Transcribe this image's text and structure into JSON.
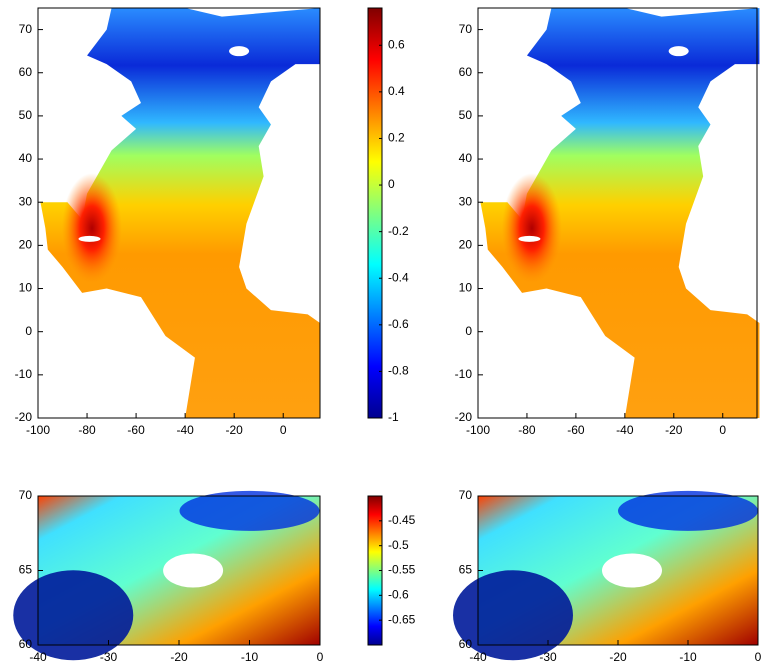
{
  "chart_data": [
    {
      "type": "heatmap",
      "xlim": [
        -100,
        15
      ],
      "ylim": [
        -20,
        75
      ],
      "xticks": [
        -100,
        -80,
        -60,
        -40,
        -20,
        0
      ],
      "yticks": [
        -20,
        -10,
        0,
        10,
        20,
        30,
        40,
        50,
        60,
        70
      ],
      "colorbar": {
        "colormap": "jet",
        "clim": [
          -1,
          0.76
        ],
        "ticks": [
          0.6,
          0.4,
          0.2,
          0,
          -0.2,
          -0.4,
          -0.6,
          -0.8,
          -1
        ]
      }
    },
    {
      "type": "heatmap",
      "xlim": [
        -100,
        14
      ],
      "ylim": [
        -20,
        75
      ],
      "xticks": [
        -100,
        -80,
        -60,
        -40,
        -20,
        0
      ],
      "yticks": [
        -20,
        -10,
        0,
        10,
        20,
        30,
        40,
        50,
        60,
        70
      ]
    },
    {
      "type": "heatmap",
      "xlim": [
        -40,
        0
      ],
      "ylim": [
        60,
        70
      ],
      "xticks": [
        -40,
        -30,
        -20,
        -10,
        0
      ],
      "yticks": [
        60,
        65,
        70
      ],
      "colorbar": {
        "colormap": "jet",
        "clim": [
          -0.7,
          -0.4
        ],
        "ticks": [
          -0.45,
          -0.5,
          -0.55,
          -0.6,
          -0.65
        ]
      }
    },
    {
      "type": "heatmap",
      "xlim": [
        -40,
        0
      ],
      "ylim": [
        60,
        70
      ],
      "xticks": [
        -40,
        -30,
        -20,
        -10,
        0
      ],
      "yticks": [
        60,
        65,
        70
      ]
    }
  ]
}
